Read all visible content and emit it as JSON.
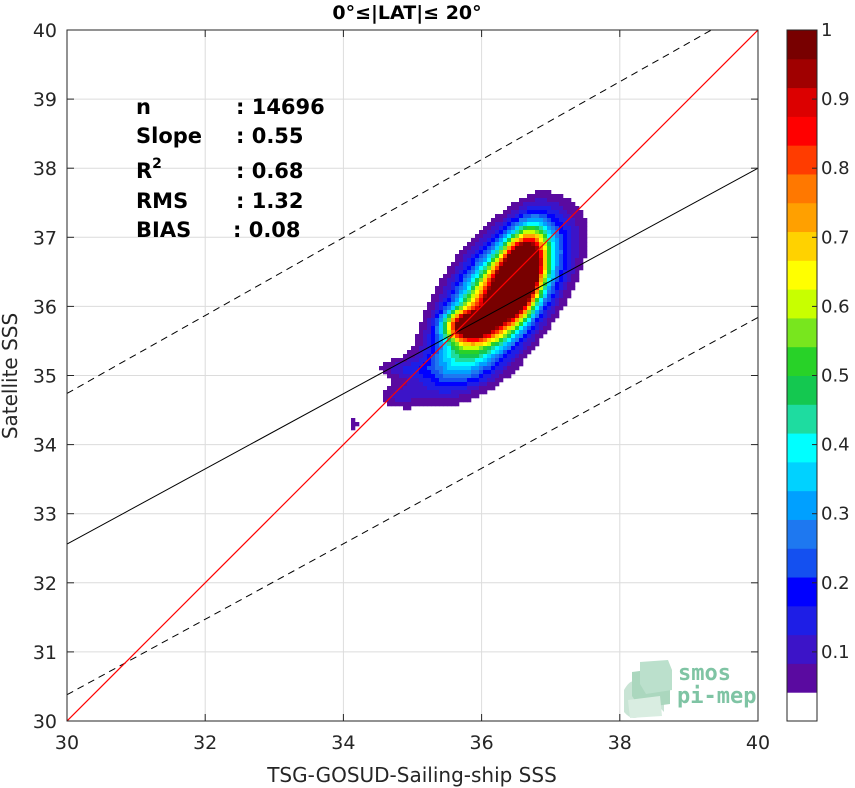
{
  "chart_data": {
    "type": "heatmap",
    "title": "0°≤|LAT|≤ 20°",
    "xlabel": "TSG-GOSUD-Sailing-ship SSS",
    "ylabel": "Satellite SSS",
    "xlim": [
      30,
      40
    ],
    "ylim": [
      30,
      40
    ],
    "xticks": [
      "30",
      "32",
      "34",
      "36",
      "38",
      "40"
    ],
    "yticks": [
      "30",
      "31",
      "32",
      "33",
      "34",
      "35",
      "36",
      "37",
      "38",
      "39",
      "40"
    ],
    "grid": true,
    "stats": {
      "n": {
        "label": "n",
        "value": ": 14696"
      },
      "slope": {
        "label": "Slope",
        "value": ": 0.55"
      },
      "r2": {
        "label": "R",
        "sup": "2",
        "value": ": 0.68"
      },
      "rms": {
        "label": "RMS",
        "value": ": 1.32"
      },
      "bias": {
        "label": "BIAS",
        "value": ": 0.08"
      }
    },
    "lines": {
      "one_to_one": {
        "color": "#ff0000",
        "x": [
          30,
          40
        ],
        "y": [
          30,
          40
        ]
      },
      "regression": {
        "color": "#000000",
        "style": "solid",
        "x": [
          30,
          40
        ],
        "y": [
          32.56,
          38.0
        ]
      },
      "upper_envelope": {
        "color": "#000000",
        "style": "dashed",
        "x": [
          30,
          40
        ],
        "y": [
          34.74,
          40.38
        ]
      },
      "lower_envelope": {
        "color": "#000000",
        "style": "dashed",
        "x": [
          30,
          40
        ],
        "y": [
          30.38,
          35.84
        ]
      }
    },
    "colorbar": {
      "ticks": [
        "0.1",
        "0.2",
        "0.3",
        "0.4",
        "0.5",
        "0.6",
        "0.7",
        "0.8",
        "0.9",
        "1"
      ],
      "range": [
        0,
        1
      ],
      "levels": [
        0.05,
        0.1,
        0.15,
        0.2,
        0.25,
        0.3,
        0.35,
        0.4,
        0.45,
        0.5,
        0.55,
        0.6,
        0.65,
        0.7,
        0.75,
        0.8,
        0.85,
        0.9,
        0.95,
        1.0
      ],
      "colors": [
        "#ffffff",
        "#5a0aa0",
        "#3c14c8",
        "#1e1ee6",
        "#0000ff",
        "#1450f0",
        "#1e78f0",
        "#00a0ff",
        "#00d2ff",
        "#00ffff",
        "#1edca0",
        "#14c850",
        "#28d228",
        "#78e61e",
        "#c8ff00",
        "#ffff00",
        "#ffd200",
        "#ffa000",
        "#ff7800",
        "#ff3c00",
        "#ff0000",
        "#dc0000",
        "#a00000",
        "#780000"
      ]
    },
    "density": {
      "peaks": [
        {
          "x": 36.55,
          "y": 36.45,
          "amp": 1.0,
          "sx": 0.22,
          "sy": 0.42,
          "rho": 0.45
        },
        {
          "x": 35.8,
          "y": 35.72,
          "amp": 0.72,
          "sx": 0.22,
          "sy": 0.14,
          "rho": 0.0
        },
        {
          "x": 36.2,
          "y": 36.0,
          "amp": 0.55,
          "sx": 0.5,
          "sy": 0.6,
          "rho": 0.7
        },
        {
          "x": 36.35,
          "y": 36.3,
          "amp": 0.5,
          "sx": 0.5,
          "sy": 0.55,
          "rho": 0.5
        },
        {
          "x": 35.7,
          "y": 35.15,
          "amp": 0.14,
          "sx": 0.45,
          "sy": 0.28,
          "rho": 0.3
        },
        {
          "x": 34.85,
          "y": 35.1,
          "amp": 0.09,
          "sx": 0.25,
          "sy": 0.1,
          "rho": 0.0
        },
        {
          "x": 34.8,
          "y": 34.7,
          "amp": 0.08,
          "sx": 0.2,
          "sy": 0.12,
          "rho": 0.0
        },
        {
          "x": 34.15,
          "y": 34.3,
          "amp": 0.08,
          "sx": 0.06,
          "sy": 0.06,
          "rho": 0.0
        }
      ]
    }
  },
  "logo": {
    "line1": "smos",
    "line2": "pi-mep"
  }
}
